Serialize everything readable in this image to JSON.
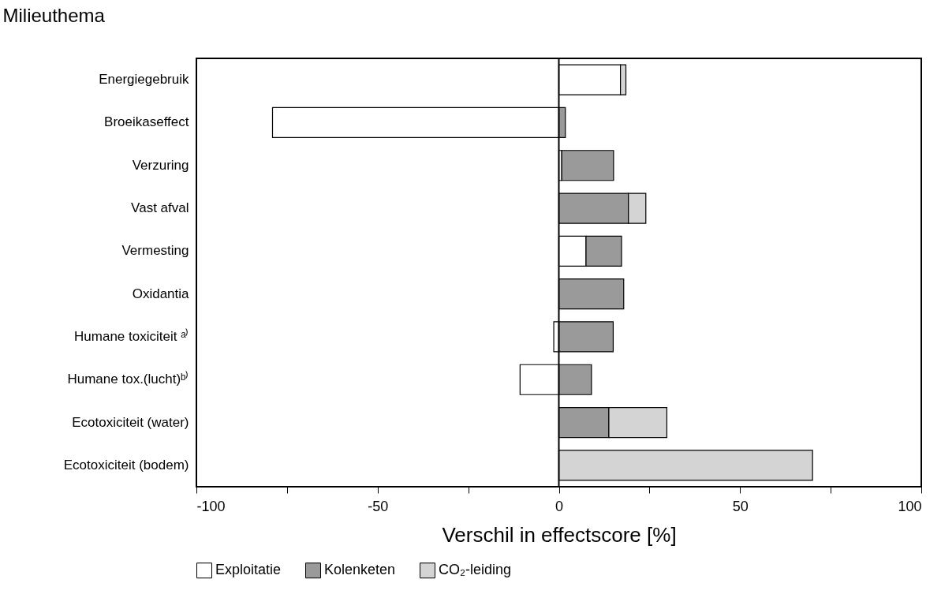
{
  "chart_data": {
    "type": "bar",
    "orientation": "horizontal",
    "stacked": true,
    "ylabel": "Milieuthema",
    "xlabel": "Verschil in effectscore [%]",
    "categories": [
      "Energiegebruik",
      "Broeikaseffect",
      "Verzuring",
      "Vast afval",
      "Vermesting",
      "Oxidantia",
      "Humane toxiciteit ᵃ⁾",
      "Humane tox.(lucht)ᵇ⁾",
      "Ecotoxiciteit (water)",
      "Ecotoxiciteit (bodem)"
    ],
    "series": [
      {
        "name": "Exploitatie",
        "color": "#ffffff",
        "values": [
          17,
          -79,
          0.8,
          null,
          7.5,
          null,
          -1.4,
          -10.7,
          null,
          null
        ]
      },
      {
        "name": "Kolenketen",
        "color": "#9a9a9a",
        "values": [
          null,
          1.8,
          14.3,
          19.2,
          9.8,
          17.9,
          15,
          9,
          13.8,
          null
        ]
      },
      {
        "name": "CO₂-leiding",
        "color": "#d4d4d4",
        "values": [
          1.5,
          null,
          null,
          4.8,
          null,
          null,
          null,
          null,
          16,
          70
        ]
      }
    ],
    "xlim": [
      -100,
      100
    ],
    "xticks": [
      -100,
      {
        "value": -75,
        "label": null
      },
      -50,
      {
        "value": -25,
        "label": null
      },
      0,
      {
        "value": 25,
        "label": null
      },
      50,
      {
        "value": 75,
        "label": null
      },
      100
    ],
    "ref_lines": [
      {
        "axis": "x",
        "value": 0
      }
    ],
    "grid": false,
    "legend": "bottom"
  }
}
